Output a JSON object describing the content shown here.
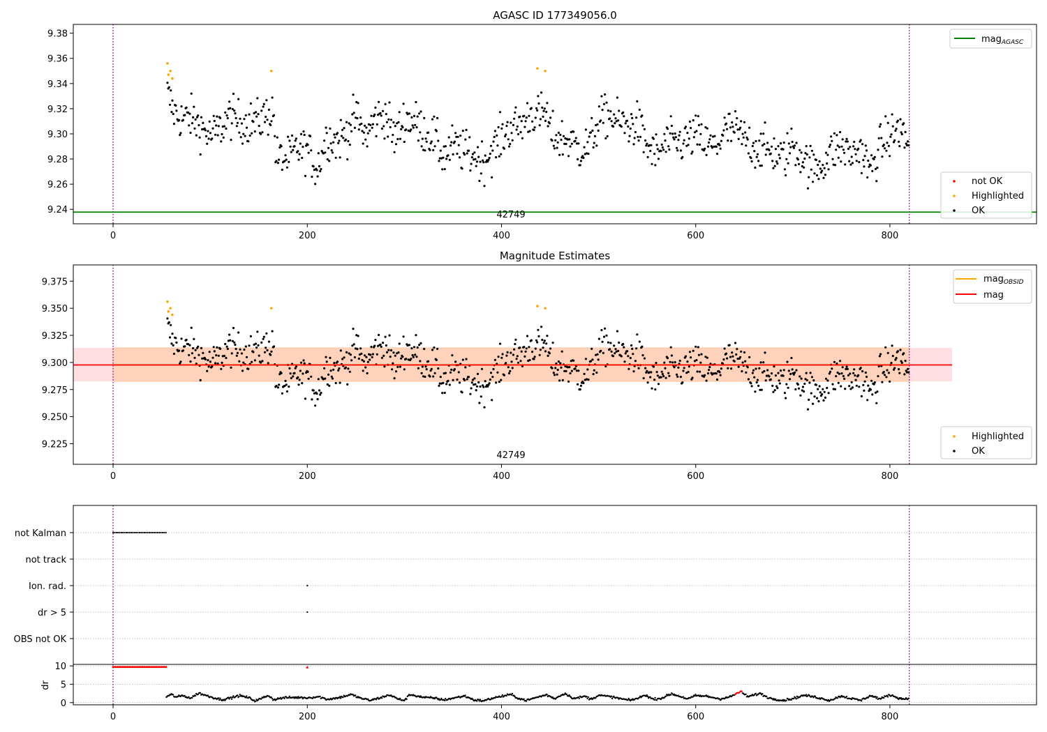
{
  "colors": {
    "ok": "#000000",
    "not_ok": "#ff0000",
    "highlighted": "#ffa500",
    "agasc_line": "#008000",
    "mag_line": "#ff0000",
    "obsid_line": "#ffa500",
    "band_fill": "#ffd0d8",
    "band_inner": "#ffd2b6",
    "interval": "#800080",
    "grid": "#b0b0b0"
  },
  "chart_data": [
    {
      "type": "scatter",
      "title": "AGASC ID 177349056.0",
      "xlabel": "",
      "ylabel": "",
      "xlim": [
        -41,
        951
      ],
      "ylim": [
        9.2285,
        9.387
      ],
      "xticks": [
        0,
        200,
        400,
        600,
        800
      ],
      "yticks": [
        9.24,
        9.26,
        9.28,
        9.3,
        9.32,
        9.34,
        9.36,
        9.38
      ],
      "ytick_labels": [
        "9.24",
        "9.26",
        "9.28",
        "9.30",
        "9.32",
        "9.34",
        "9.36",
        "9.38"
      ],
      "interval_lines_x": [
        0,
        820
      ],
      "obsid_label": "42749",
      "mag_agasc": 9.2378,
      "legend_upper": [
        {
          "label": "mag",
          "sub": "AGASC",
          "color": "#008000"
        }
      ],
      "legend_lower": [
        {
          "label": "not OK",
          "color": "#ff0000"
        },
        {
          "label": "Highlighted",
          "color": "#ffa500"
        },
        {
          "label": "OK",
          "color": "#000000"
        }
      ],
      "highlighted_points": [
        [
          56,
          9.356
        ],
        [
          57,
          9.347
        ],
        [
          59,
          9.35
        ],
        [
          61,
          9.344
        ],
        [
          163,
          9.35
        ],
        [
          437,
          9.352
        ],
        [
          445,
          9.35
        ]
      ],
      "trend": [
        [
          56,
          9.332
        ],
        [
          62,
          9.318
        ],
        [
          70,
          9.312
        ],
        [
          80,
          9.313
        ],
        [
          90,
          9.306
        ],
        [
          100,
          9.298
        ],
        [
          110,
          9.304
        ],
        [
          120,
          9.314
        ],
        [
          130,
          9.31
        ],
        [
          140,
          9.309
        ],
        [
          150,
          9.31
        ],
        [
          160,
          9.316
        ],
        [
          165,
          9.318
        ],
        [
          168,
          9.281
        ],
        [
          180,
          9.28
        ],
        [
          190,
          9.288
        ],
        [
          200,
          9.288
        ],
        [
          210,
          9.272
        ],
        [
          220,
          9.298
        ],
        [
          230,
          9.294
        ],
        [
          240,
          9.3
        ],
        [
          250,
          9.314
        ],
        [
          260,
          9.298
        ],
        [
          270,
          9.312
        ],
        [
          280,
          9.316
        ],
        [
          290,
          9.296
        ],
        [
          300,
          9.312
        ],
        [
          310,
          9.31
        ],
        [
          320,
          9.302
        ],
        [
          330,
          9.298
        ],
        [
          340,
          9.282
        ],
        [
          350,
          9.29
        ],
        [
          360,
          9.286
        ],
        [
          370,
          9.284
        ],
        [
          380,
          9.278
        ],
        [
          390,
          9.286
        ],
        [
          400,
          9.297
        ],
        [
          410,
          9.305
        ],
        [
          420,
          9.307
        ],
        [
          430,
          9.316
        ],
        [
          440,
          9.314
        ],
        [
          446,
          9.318
        ],
        [
          450,
          9.3
        ],
        [
          460,
          9.296
        ],
        [
          470,
          9.295
        ],
        [
          480,
          9.288
        ],
        [
          490,
          9.29
        ],
        [
          500,
          9.31
        ],
        [
          510,
          9.315
        ],
        [
          520,
          9.31
        ],
        [
          530,
          9.306
        ],
        [
          540,
          9.308
        ],
        [
          550,
          9.29
        ],
        [
          560,
          9.283
        ],
        [
          570,
          9.293
        ],
        [
          580,
          9.293
        ],
        [
          590,
          9.294
        ],
        [
          600,
          9.299
        ],
        [
          610,
          9.292
        ],
        [
          620,
          9.289
        ],
        [
          630,
          9.302
        ],
        [
          640,
          9.303
        ],
        [
          650,
          9.296
        ],
        [
          660,
          9.29
        ],
        [
          670,
          9.288
        ],
        [
          680,
          9.286
        ],
        [
          690,
          9.28
        ],
        [
          700,
          9.292
        ],
        [
          710,
          9.282
        ],
        [
          720,
          9.272
        ],
        [
          730,
          9.276
        ],
        [
          740,
          9.286
        ],
        [
          750,
          9.29
        ],
        [
          760,
          9.283
        ],
        [
          770,
          9.288
        ],
        [
          780,
          9.27
        ],
        [
          790,
          9.29
        ],
        [
          800,
          9.298
        ],
        [
          810,
          9.304
        ],
        [
          820,
          9.29
        ]
      ]
    },
    {
      "type": "scatter",
      "title": "Magnitude Estimates",
      "xlabel": "",
      "ylabel": "",
      "xlim": [
        -41,
        951
      ],
      "ylim": [
        9.206,
        9.39
      ],
      "xticks": [
        0,
        200,
        400,
        600,
        800
      ],
      "yticks": [
        9.225,
        9.25,
        9.275,
        9.3,
        9.325,
        9.35,
        9.375
      ],
      "ytick_labels": [
        "9.225",
        "9.250",
        "9.275",
        "9.300",
        "9.325",
        "9.350",
        "9.375"
      ],
      "interval_lines_x": [
        0,
        820
      ],
      "obsid_label": "42749",
      "mag": 9.2977,
      "mag_obsid": 9.2977,
      "band_outer": [
        9.2825,
        9.3135
      ],
      "band_inner": [
        9.2825,
        9.3135
      ],
      "band_x": [
        -41,
        864
      ],
      "band_inner_x": [
        0,
        820
      ],
      "legend_upper": [
        {
          "label": "mag",
          "sub": "OBSID",
          "color": "#ffa500"
        },
        {
          "label": "mag",
          "sub": "",
          "color": "#ff0000"
        }
      ],
      "legend_lower": [
        {
          "label": "Highlighted",
          "color": "#ffa500"
        },
        {
          "label": "OK",
          "color": "#000000"
        }
      ]
    },
    {
      "type": "scatter",
      "title": "",
      "xlabel": "",
      "ylabel": "",
      "xlim": [
        -41,
        951
      ],
      "xticks": [
        0,
        200,
        400,
        600,
        800
      ],
      "interval_lines_x": [
        0,
        820
      ],
      "flag_rows": [
        "not Kalman",
        "not track",
        "Ion. rad.",
        "dr > 5",
        "OBS not OK"
      ],
      "flag_events": [
        {
          "row": "not Kalman",
          "x_start": 0,
          "x_end": 55
        },
        {
          "row": "Ion. rad.",
          "x_start": 200,
          "x_end": 200
        },
        {
          "row": "dr > 5",
          "x_start": 200,
          "x_end": 200
        }
      ],
      "dr_ylabel": "dr",
      "dr_yticks": [
        0,
        5,
        10
      ],
      "dr_ylim": [
        -0.6,
        10.4
      ],
      "dr_high_points": {
        "x_start": 0,
        "x_end": 55,
        "value": 9.7,
        "extra_x": 200
      },
      "dr_trend": [
        [
          55,
          1.6
        ],
        [
          60,
          2.2
        ],
        [
          65,
          1.5
        ],
        [
          72,
          1.9
        ],
        [
          80,
          1.2
        ],
        [
          88,
          2.6
        ],
        [
          96,
          1.9
        ],
        [
          104,
          1.3
        ],
        [
          112,
          0.8
        ],
        [
          120,
          1.2
        ],
        [
          130,
          1.9
        ],
        [
          140,
          1.3
        ],
        [
          146,
          0.5
        ],
        [
          152,
          1.0
        ],
        [
          160,
          2.0
        ],
        [
          165,
          0.8
        ],
        [
          175,
          1.3
        ],
        [
          190,
          1.4
        ],
        [
          200,
          1.3
        ],
        [
          212,
          1.6
        ],
        [
          220,
          0.9
        ],
        [
          232,
          1.3
        ],
        [
          245,
          2.2
        ],
        [
          255,
          1.2
        ],
        [
          265,
          0.6
        ],
        [
          275,
          1.3
        ],
        [
          285,
          2.1
        ],
        [
          293,
          1.0
        ],
        [
          300,
          0.6
        ],
        [
          306,
          2.2
        ],
        [
          320,
          1.4
        ],
        [
          332,
          1.2
        ],
        [
          340,
          0.7
        ],
        [
          352,
          1.3
        ],
        [
          362,
          1.8
        ],
        [
          372,
          0.7
        ],
        [
          382,
          0.5
        ],
        [
          392,
          1.3
        ],
        [
          402,
          1.8
        ],
        [
          410,
          2.2
        ],
        [
          418,
          1.1
        ],
        [
          426,
          0.6
        ],
        [
          436,
          1.4
        ],
        [
          446,
          2.1
        ],
        [
          455,
          1.1
        ],
        [
          465,
          2.5
        ],
        [
          475,
          1.1
        ],
        [
          486,
          1.7
        ],
        [
          492,
          0.9
        ],
        [
          500,
          2.0
        ],
        [
          512,
          1.6
        ],
        [
          522,
          1.1
        ],
        [
          532,
          0.6
        ],
        [
          542,
          1.3
        ],
        [
          548,
          2.1
        ],
        [
          556,
          0.9
        ],
        [
          565,
          1.2
        ],
        [
          575,
          2.4
        ],
        [
          585,
          1.6
        ],
        [
          592,
          1.0
        ],
        [
          600,
          1.9
        ],
        [
          612,
          1.7
        ],
        [
          625,
          1.0
        ],
        [
          636,
          1.6
        ],
        [
          646,
          3.0
        ],
        [
          654,
          1.6
        ],
        [
          666,
          2.5
        ],
        [
          676,
          1.2
        ],
        [
          690,
          0.6
        ],
        [
          700,
          1.1
        ],
        [
          712,
          2.0
        ],
        [
          725,
          1.4
        ],
        [
          738,
          0.6
        ],
        [
          750,
          1.8
        ],
        [
          760,
          1.1
        ],
        [
          770,
          0.6
        ],
        [
          780,
          1.9
        ],
        [
          790,
          1.0
        ],
        [
          800,
          2.1
        ],
        [
          812,
          1.0
        ],
        [
          820,
          1.1
        ]
      ]
    }
  ]
}
